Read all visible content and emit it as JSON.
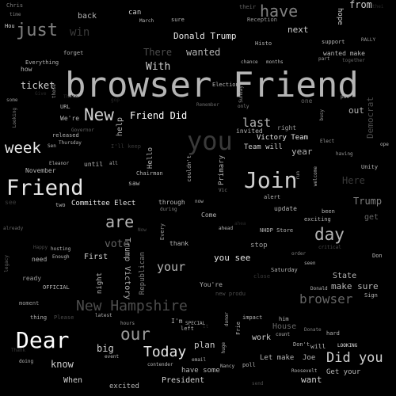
{
  "words": [
    "browser Friend",
    "Dear",
    "Friend",
    "Join",
    "you",
    "have",
    "just",
    "New",
    "week",
    "are",
    "day",
    "our",
    "Today",
    "Did you",
    "New Hampshire",
    "browser",
    "last",
    "your",
    "Donald Trump",
    "Friend Did",
    "win",
    "With",
    "wanted",
    "There",
    "from",
    "next",
    "ticket",
    "Committee Elect",
    "Victory Team",
    "Team will",
    "Trump",
    "make sure",
    "Here",
    "vote",
    "know",
    "big",
    "you see",
    "First",
    "Trump Victory",
    "State",
    "get",
    "Primary",
    "Democrat",
    "out",
    "help",
    "Republican",
    "night",
    "plan",
    "work",
    "hope",
    "can",
    "back",
    "Hello",
    "invited",
    "year",
    "When",
    "excited",
    "President",
    "have some",
    "Get your",
    "want",
    "Let make",
    "Joe",
    "House",
    "NHDP Store",
    "Saturday",
    "Come",
    "thank",
    "update",
    "alert",
    "stop",
    "been",
    "exciting",
    "Election",
    "Chris",
    "time",
    "Hou",
    "March",
    "sure",
    "their",
    "Reception",
    "Histo",
    "support",
    "RALLY",
    "wanted make",
    "together",
    "part",
    "chance",
    "months",
    "Everything",
    "forget",
    "how",
    "some",
    "Looking",
    "released",
    "We're",
    "Governor",
    "Sen",
    "Thursday",
    "November",
    "Eleanor",
    "until",
    "all",
    "Chairman",
    "saw",
    "through",
    "during",
    "now",
    "two",
    "couldn't",
    "Vic",
    "right",
    "Elect",
    "having",
    "Unity",
    "ope",
    "welcome",
    "run",
    "only",
    "Remember",
    "one",
    "busy",
    "put",
    "already",
    "Happy",
    "hosting",
    "Enough",
    "need",
    "ready",
    "OFFICIAL",
    "moment",
    "thing",
    "Please",
    "latest",
    "hours",
    "I'm",
    "SPECIAL",
    "left",
    "email",
    "huge",
    "donor",
    "Frie",
    "impact",
    "him",
    "count",
    "Donate",
    "hard",
    "Don't",
    "will",
    "LOOKING",
    "Donald",
    "Sign",
    "Don",
    "critical",
    "seen",
    "order",
    "close",
    "You're",
    "new produ",
    "ahead",
    "Every",
    "I'll keep",
    "Now",
    "event",
    "contender",
    "doing",
    "Nancy",
    "poll",
    "send",
    "Roosevelt",
    "Thank",
    "legacy",
    "URL",
    "those",
    "Sunday",
    "Those",
    "see",
    "gop",
    "thei",
    "ahea",
    "Give",
    "it"
  ]
}
